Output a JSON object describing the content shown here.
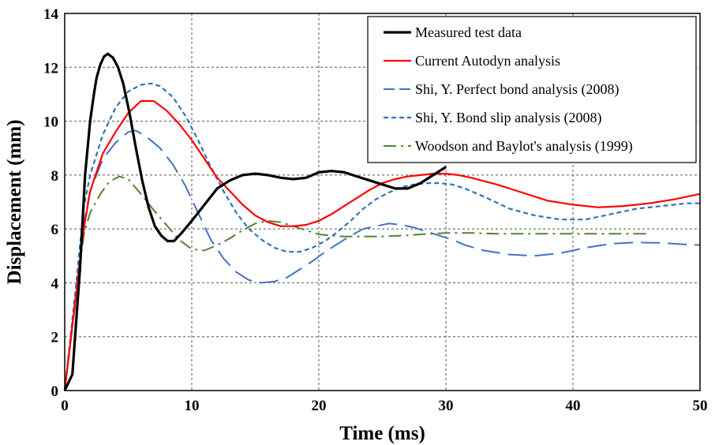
{
  "chart_data": {
    "type": "line",
    "xlabel": "Time (ms)",
    "ylabel": "Displacement (mm)",
    "xlim": [
      0,
      50
    ],
    "ylim": [
      0,
      14
    ],
    "xticks": [
      0,
      10,
      20,
      30,
      40,
      50
    ],
    "yticks": [
      0,
      2,
      4,
      6,
      8,
      10,
      12,
      14
    ],
    "grid": true,
    "legend_position": "top-right",
    "series": [
      {
        "name": "Measured test data",
        "color": "#000000",
        "dash": "solid",
        "points": [
          [
            0,
            0
          ],
          [
            0.6,
            0.6
          ],
          [
            1.2,
            4.5
          ],
          [
            1.6,
            8
          ],
          [
            2,
            10
          ],
          [
            2.3,
            11
          ],
          [
            2.5,
            11.6
          ],
          [
            2.8,
            12.1
          ],
          [
            3.1,
            12.4
          ],
          [
            3.4,
            12.5
          ],
          [
            3.8,
            12.35
          ],
          [
            4.2,
            12
          ],
          [
            4.6,
            11.4
          ],
          [
            5.1,
            10.3
          ],
          [
            5.6,
            9
          ],
          [
            6.1,
            7.8
          ],
          [
            6.6,
            6.8
          ],
          [
            7.1,
            6.1
          ],
          [
            7.6,
            5.75
          ],
          [
            8.1,
            5.55
          ],
          [
            8.6,
            5.55
          ],
          [
            9.2,
            5.85
          ],
          [
            10,
            6.3
          ],
          [
            11,
            6.9
          ],
          [
            12,
            7.5
          ],
          [
            13,
            7.8
          ],
          [
            14,
            8.0
          ],
          [
            15,
            8.05
          ],
          [
            16,
            8.0
          ],
          [
            17,
            7.9
          ],
          [
            18,
            7.85
          ],
          [
            19,
            7.9
          ],
          [
            20,
            8.1
          ],
          [
            21,
            8.15
          ],
          [
            22,
            8.1
          ],
          [
            23,
            7.95
          ],
          [
            24,
            7.8
          ],
          [
            25,
            7.65
          ],
          [
            26,
            7.5
          ],
          [
            27,
            7.5
          ],
          [
            28,
            7.7
          ],
          [
            29,
            8.0
          ],
          [
            30,
            8.3
          ]
        ]
      },
      {
        "name": "Current Autodyn analysis",
        "color": "#ff0000",
        "dash": "solid",
        "points": [
          [
            0,
            0
          ],
          [
            0.8,
            3.2
          ],
          [
            1.5,
            6
          ],
          [
            2,
            7.4
          ],
          [
            3,
            8.8
          ],
          [
            4,
            9.6
          ],
          [
            5,
            10.3
          ],
          [
            6,
            10.75
          ],
          [
            7,
            10.75
          ],
          [
            8,
            10.4
          ],
          [
            9,
            9.9
          ],
          [
            10,
            9.3
          ],
          [
            11,
            8.6
          ],
          [
            12,
            7.9
          ],
          [
            13,
            7.4
          ],
          [
            14,
            6.9
          ],
          [
            15,
            6.5
          ],
          [
            16,
            6.25
          ],
          [
            17,
            6.1
          ],
          [
            18,
            6.1
          ],
          [
            19,
            6.15
          ],
          [
            20,
            6.3
          ],
          [
            21,
            6.55
          ],
          [
            22,
            6.85
          ],
          [
            23,
            7.15
          ],
          [
            24,
            7.45
          ],
          [
            25,
            7.7
          ],
          [
            26,
            7.85
          ],
          [
            27,
            7.95
          ],
          [
            28,
            8.0
          ],
          [
            29,
            8.05
          ],
          [
            30,
            8.05
          ],
          [
            31,
            8.0
          ],
          [
            32,
            7.9
          ],
          [
            34,
            7.65
          ],
          [
            36,
            7.35
          ],
          [
            38,
            7.05
          ],
          [
            40,
            6.9
          ],
          [
            42,
            6.8
          ],
          [
            44,
            6.85
          ],
          [
            46,
            6.95
          ],
          [
            48,
            7.1
          ],
          [
            50,
            7.3
          ]
        ]
      },
      {
        "name": "Shi, Y. Perfect bond analysis (2008)",
        "color": "#4472c4",
        "dash": "long-dash",
        "points": [
          [
            0,
            0
          ],
          [
            0.8,
            3.3
          ],
          [
            1.5,
            6.2
          ],
          [
            2,
            7.4
          ],
          [
            3,
            8.6
          ],
          [
            4,
            9.2
          ],
          [
            5,
            9.6
          ],
          [
            5.6,
            9.65
          ],
          [
            6.5,
            9.4
          ],
          [
            7.5,
            9.0
          ],
          [
            8.5,
            8.4
          ],
          [
            9.5,
            7.6
          ],
          [
            10.5,
            6.6
          ],
          [
            11.5,
            5.6
          ],
          [
            12.5,
            4.9
          ],
          [
            13.5,
            4.4
          ],
          [
            14.5,
            4.1
          ],
          [
            15.5,
            4.0
          ],
          [
            16.5,
            4.05
          ],
          [
            17.5,
            4.2
          ],
          [
            18.5,
            4.5
          ],
          [
            19.5,
            4.8
          ],
          [
            20.5,
            5.15
          ],
          [
            21.5,
            5.45
          ],
          [
            22.5,
            5.75
          ],
          [
            23.5,
            6.0
          ],
          [
            24.5,
            6.1
          ],
          [
            25.5,
            6.2
          ],
          [
            26.5,
            6.15
          ],
          [
            27.5,
            6.05
          ],
          [
            28.5,
            5.9
          ],
          [
            29.5,
            5.75
          ],
          [
            30.5,
            5.6
          ],
          [
            31.5,
            5.4
          ],
          [
            33,
            5.2
          ],
          [
            35,
            5.05
          ],
          [
            37,
            5.0
          ],
          [
            39,
            5.1
          ],
          [
            41,
            5.3
          ],
          [
            43,
            5.45
          ],
          [
            45,
            5.5
          ],
          [
            47,
            5.48
          ],
          [
            49,
            5.42
          ],
          [
            50,
            5.4
          ]
        ]
      },
      {
        "name": "Shi, Y. Bond slip analysis (2008)",
        "color": "#2e75b6",
        "dash": "short-dash",
        "points": [
          [
            0,
            0
          ],
          [
            0.8,
            3.5
          ],
          [
            1.5,
            6.8
          ],
          [
            2,
            8
          ],
          [
            3,
            9.5
          ],
          [
            4,
            10.5
          ],
          [
            5,
            11.1
          ],
          [
            6,
            11.35
          ],
          [
            6.8,
            11.4
          ],
          [
            7.5,
            11.3
          ],
          [
            8.5,
            10.9
          ],
          [
            9.5,
            10.2
          ],
          [
            10.5,
            9.3
          ],
          [
            11.5,
            8.3
          ],
          [
            12.5,
            7.4
          ],
          [
            13.5,
            6.6
          ],
          [
            14.5,
            6.0
          ],
          [
            15.5,
            5.6
          ],
          [
            16.5,
            5.3
          ],
          [
            17.5,
            5.15
          ],
          [
            18.5,
            5.15
          ],
          [
            19.5,
            5.3
          ],
          [
            20.5,
            5.55
          ],
          [
            21.5,
            5.9
          ],
          [
            22.5,
            6.3
          ],
          [
            23.5,
            6.75
          ],
          [
            24.5,
            7.1
          ],
          [
            25.5,
            7.35
          ],
          [
            26.5,
            7.55
          ],
          [
            27.5,
            7.65
          ],
          [
            28.5,
            7.7
          ],
          [
            29.5,
            7.7
          ],
          [
            30.5,
            7.65
          ],
          [
            31.5,
            7.5
          ],
          [
            33,
            7.2
          ],
          [
            35,
            6.75
          ],
          [
            37,
            6.5
          ],
          [
            39,
            6.35
          ],
          [
            41,
            6.35
          ],
          [
            43,
            6.55
          ],
          [
            45,
            6.75
          ],
          [
            47,
            6.85
          ],
          [
            49,
            6.95
          ],
          [
            50,
            6.95
          ]
        ]
      },
      {
        "name": "Woodson and Baylot's analysis (1999)",
        "color": "#548235",
        "dash": "dash-dot",
        "points": [
          [
            0,
            0
          ],
          [
            0.8,
            3.1
          ],
          [
            1.5,
            5.8
          ],
          [
            2,
            6.6
          ],
          [
            2.8,
            7.3
          ],
          [
            3.5,
            7.75
          ],
          [
            4.3,
            7.95
          ],
          [
            5,
            7.85
          ],
          [
            6,
            7.3
          ],
          [
            7,
            6.7
          ],
          [
            8,
            6.15
          ],
          [
            9,
            5.6
          ],
          [
            10,
            5.25
          ],
          [
            11,
            5.2
          ],
          [
            12,
            5.4
          ],
          [
            13,
            5.65
          ],
          [
            14,
            5.95
          ],
          [
            15,
            6.2
          ],
          [
            16,
            6.3
          ],
          [
            17,
            6.25
          ],
          [
            18,
            6.1
          ],
          [
            19,
            5.95
          ],
          [
            20,
            5.8
          ],
          [
            21,
            5.75
          ],
          [
            22,
            5.72
          ],
          [
            23,
            5.72
          ],
          [
            24,
            5.72
          ],
          [
            25,
            5.72
          ],
          [
            26,
            5.74
          ],
          [
            27,
            5.76
          ],
          [
            28,
            5.8
          ],
          [
            30,
            5.85
          ],
          [
            32,
            5.85
          ],
          [
            34,
            5.82
          ],
          [
            36,
            5.82
          ],
          [
            38,
            5.82
          ],
          [
            40,
            5.82
          ],
          [
            42,
            5.82
          ],
          [
            44,
            5.82
          ],
          [
            46,
            5.82
          ]
        ]
      }
    ]
  }
}
